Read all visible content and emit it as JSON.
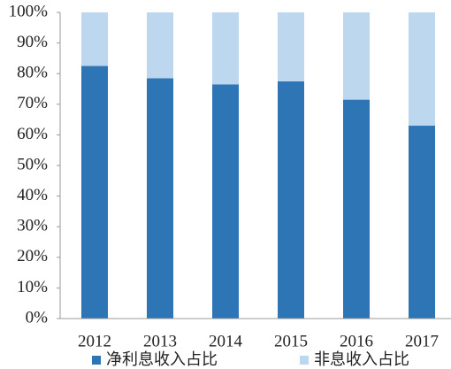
{
  "chart_data": {
    "type": "stacked_bar",
    "categories": [
      "2012",
      "2013",
      "2014",
      "2015",
      "2016",
      "2017"
    ],
    "series": [
      {
        "name": "净利息收入占比",
        "color": "#2e75b6",
        "values": [
          82.5,
          78.5,
          76.5,
          77.5,
          71.5,
          63
        ]
      },
      {
        "name": "非息收入占比",
        "color": "#bdd7ee",
        "values": [
          17.5,
          21.5,
          23.5,
          22.5,
          28.5,
          37
        ]
      }
    ],
    "ylim": [
      0,
      100
    ],
    "yticks": [
      {
        "value": 0,
        "label": "0%"
      },
      {
        "value": 10,
        "label": "10%"
      },
      {
        "value": 20,
        "label": "20%"
      },
      {
        "value": 30,
        "label": "30%"
      },
      {
        "value": 40,
        "label": "40%"
      },
      {
        "value": 50,
        "label": "50%"
      },
      {
        "value": 60,
        "label": "60%"
      },
      {
        "value": 70,
        "label": "70%"
      },
      {
        "value": 80,
        "label": "80%"
      },
      {
        "value": 90,
        "label": "90%"
      },
      {
        "value": 100,
        "label": "100%"
      }
    ],
    "legend": "bottom"
  }
}
